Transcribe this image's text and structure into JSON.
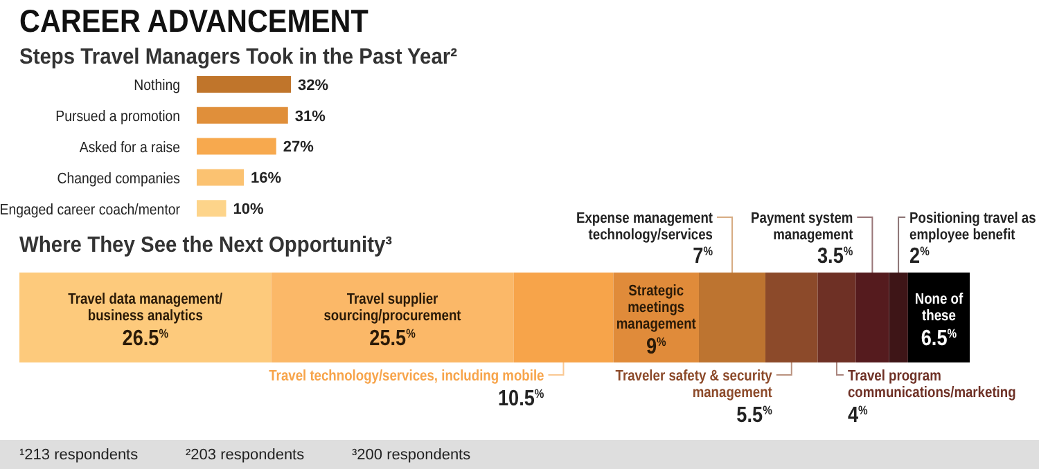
{
  "chart_data": [
    {
      "type": "bar",
      "orientation": "horizontal",
      "title": "CAREER ADVANCEMENT",
      "subtitle": "Steps Travel Managers Took in the Past Year²",
      "categories": [
        "Nothing",
        "Pursued a promotion",
        "Asked for a raise",
        "Changed companies",
        "Engaged career coach/mentor"
      ],
      "values": [
        32,
        31,
        27,
        16,
        10
      ],
      "colors": [
        "#c0752b",
        "#e08f3a",
        "#f7a94e",
        "#fbc271",
        "#fdd48a"
      ],
      "value_labels": [
        "32%",
        "31%",
        "27%",
        "16%",
        "10%"
      ]
    },
    {
      "type": "bar",
      "orientation": "horizontal",
      "stacked": true,
      "title": "Where They See the Next Opportunity³",
      "categories": [
        null
      ],
      "series": [
        {
          "name": "Travel data management/ business analytics",
          "color": "#fdca7c",
          "values": [
            26.5
          ],
          "value_labels": [
            "26.5$^{%}$"
          ]
        },
        {
          "name": "Travel supplier sourcing/procurement",
          "color": "#fbb868",
          "values": [
            25.5
          ],
          "value_labels": [
            "25.5$^{%}$"
          ]
        },
        {
          "name": "Travel technology/services, including mobile",
          "color": "#f7a44a",
          "values": [
            10.5
          ],
          "value_labels": [
            "10.5$^{%}$"
          ]
        },
        {
          "name": "Strategic meetings management",
          "color": "#e08b3a",
          "values": [
            9
          ],
          "value_labels": [
            "9$^{%}$"
          ]
        },
        {
          "name": "Expense management technology/services",
          "color": "#bd7430",
          "values": [
            7
          ],
          "value_labels": [
            "7$^{%}$"
          ]
        },
        {
          "name": "Traveler safety & security management",
          "color": "#8c4a2a",
          "values": [
            5.5
          ],
          "value_labels": [
            "5.5$^{%}$"
          ]
        },
        {
          "name": "Travel program communications/marketing",
          "color": "#6e3025",
          "values": [
            4
          ],
          "value_labels": [
            "4$^{%}$"
          ]
        },
        {
          "name": "Payment system management",
          "color": "#551b1e",
          "values": [
            3.5
          ],
          "value_labels": [
            "3.5$^{%}$"
          ]
        },
        {
          "name": "Positioning travel as employee benefit",
          "color": "#3e1517",
          "values": [
            2
          ],
          "value_labels": [
            "2$^{%}$"
          ]
        },
        {
          "name": "None of these",
          "color": "#000000",
          "values": [
            6.5
          ],
          "value_labels": [
            "6.5$^{%}$"
          ]
        }
      ],
      "annotations": [
        "¹213 respondents",
        "²203 respondents",
        "³200 respondents"
      ]
    }
  ]
}
